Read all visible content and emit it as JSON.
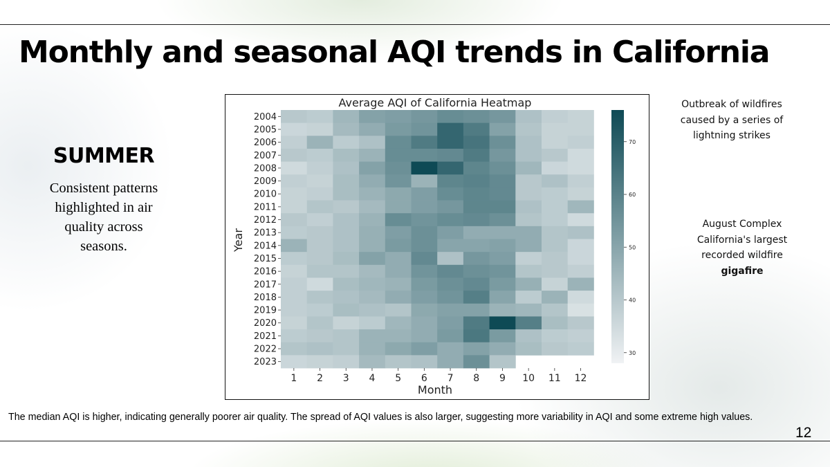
{
  "slide": {
    "title": "Monthly and seasonal AQI trends in California",
    "season_heading": "SUMMER",
    "season_text": "Consistent patterns highlighted in air quality across seasons.",
    "note_wildfire_outbreak": "Outbreak of wildfires caused by a series of lightning strikes",
    "note_august_complex": "August Complex California's largest recorded wildfire",
    "note_august_complex_bold": "gigafire",
    "footer": "The median AQI is higher, indicating generally poorer air quality. The spread of AQI values is also larger, suggesting more variability in AQI and some extreme high values.",
    "page_number": "12"
  },
  "colors": {
    "heat_low": "#f0f2f4",
    "heat_high": "#0e4a55",
    "rule": "#222222"
  },
  "chart_data": {
    "type": "heatmap",
    "title": "Average AQI of California Heatmap",
    "xlabel": "Month",
    "ylabel": "Year",
    "x": [
      "1",
      "2",
      "3",
      "4",
      "5",
      "6",
      "7",
      "8",
      "9",
      "10",
      "11",
      "12"
    ],
    "y": [
      "2004",
      "2005",
      "2006",
      "2007",
      "2008",
      "2009",
      "2010",
      "2011",
      "2012",
      "2013",
      "2014",
      "2015",
      "2016",
      "2017",
      "2018",
      "2019",
      "2020",
      "2021",
      "2022",
      "2023"
    ],
    "colorbar": {
      "range": [
        28,
        76
      ],
      "ticks": [
        30,
        40,
        50,
        60,
        70
      ]
    },
    "values": [
      [
        40,
        39,
        45,
        51,
        52,
        54,
        57,
        56,
        54,
        42,
        38,
        37
      ],
      [
        36,
        37,
        44,
        48,
        53,
        55,
        68,
        62,
        51,
        41,
        37,
        37
      ],
      [
        38,
        46,
        39,
        42,
        57,
        62,
        68,
        64,
        56,
        42,
        37,
        38
      ],
      [
        40,
        39,
        43,
        46,
        57,
        57,
        58,
        62,
        54,
        42,
        40,
        35
      ],
      [
        35,
        38,
        42,
        51,
        56,
        76,
        68,
        59,
        56,
        45,
        36,
        35
      ],
      [
        38,
        37,
        43,
        48,
        55,
        46,
        59,
        60,
        58,
        40,
        42,
        38
      ],
      [
        37,
        38,
        43,
        46,
        49,
        52,
        57,
        59,
        58,
        40,
        39,
        37
      ],
      [
        37,
        41,
        40,
        44,
        49,
        52,
        54,
        59,
        59,
        42,
        39,
        45
      ],
      [
        40,
        38,
        42,
        46,
        57,
        55,
        57,
        58,
        56,
        41,
        39,
        35
      ],
      [
        39,
        40,
        42,
        47,
        52,
        56,
        52,
        48,
        48,
        48,
        41,
        42
      ],
      [
        46,
        40,
        42,
        47,
        53,
        56,
        50,
        50,
        51,
        48,
        41,
        36
      ],
      [
        39,
        40,
        43,
        51,
        48,
        58,
        42,
        54,
        52,
        38,
        40,
        36
      ],
      [
        37,
        41,
        41,
        44,
        48,
        55,
        58,
        56,
        55,
        41,
        40,
        38
      ],
      [
        38,
        35,
        43,
        45,
        46,
        53,
        56,
        58,
        53,
        47,
        37,
        46
      ],
      [
        38,
        41,
        42,
        44,
        48,
        52,
        55,
        61,
        50,
        39,
        46,
        35
      ],
      [
        38,
        39,
        43,
        42,
        41,
        49,
        51,
        51,
        46,
        45,
        41,
        33
      ],
      [
        37,
        41,
        37,
        39,
        45,
        48,
        52,
        62,
        76,
        61,
        43,
        40
      ],
      [
        39,
        40,
        41,
        46,
        46,
        48,
        53,
        63,
        53,
        42,
        39,
        38
      ],
      [
        41,
        42,
        41,
        46,
        49,
        52,
        48,
        51,
        48,
        43,
        40,
        39
      ],
      [
        36,
        37,
        38,
        44,
        41,
        42,
        48,
        56,
        41,
        null,
        null,
        null
      ]
    ]
  }
}
